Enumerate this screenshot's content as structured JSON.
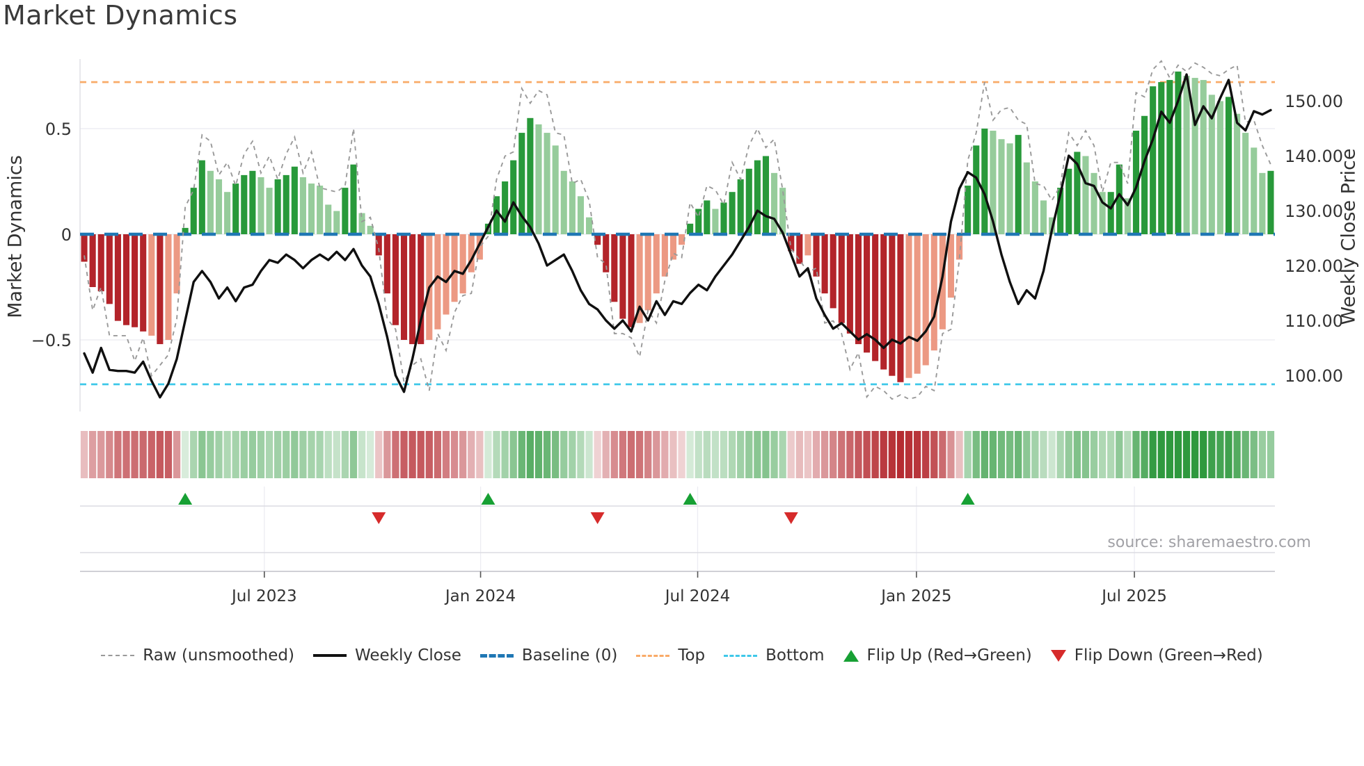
{
  "title": "Market Dynamics",
  "source_note": "source: sharemaestro.com",
  "axes": {
    "left_label": "Market Dynamics",
    "right_label": "Weekly Close Price",
    "left_ticks": [
      {
        "v": 0.5,
        "label": "0.5"
      },
      {
        "v": 0,
        "label": "0"
      },
      {
        "v": -0.5,
        "label": "−0.5"
      }
    ],
    "right_ticks": [
      {
        "v": 150,
        "label": "150.00"
      },
      {
        "v": 140,
        "label": "140.00"
      },
      {
        "v": 130,
        "label": "130.00"
      },
      {
        "v": 120,
        "label": "120.00"
      },
      {
        "v": 110,
        "label": "110.00"
      },
      {
        "v": 100,
        "label": "100.00"
      }
    ],
    "x_ticks": [
      {
        "week": 21.4,
        "label": "Jul 2023"
      },
      {
        "week": 47.1,
        "label": "Jan 2024"
      },
      {
        "week": 72.9,
        "label": "Jul 2024"
      },
      {
        "week": 98.9,
        "label": "Jan 2025"
      },
      {
        "week": 124.8,
        "label": "Jul 2025"
      }
    ]
  },
  "legend": {
    "items": [
      {
        "id": "raw",
        "swatch": "dash-gray",
        "label": "Raw (unsmoothed)"
      },
      {
        "id": "weekly-close",
        "swatch": "line-black",
        "label": "Weekly Close"
      },
      {
        "id": "baseline",
        "swatch": "dash-blue",
        "label": "Baseline (0)"
      },
      {
        "id": "top",
        "swatch": "dash-orange",
        "label": "Top"
      },
      {
        "id": "bottom",
        "swatch": "dash-cyan",
        "label": "Bottom"
      },
      {
        "id": "flip-up",
        "swatch": "tri-up",
        "label": "Flip Up (Red→Green)"
      },
      {
        "id": "flip-down",
        "swatch": "tri-down",
        "label": "Flip Down (Green→Red)"
      }
    ]
  },
  "chart_data": {
    "type": "bar",
    "subtype": "weekly impulse bars + raw dashed line + price line + heat strip + flip markers",
    "baseline": 0,
    "top_threshold": 0.72,
    "bottom_threshold": -0.71,
    "left_axis_range": [
      -0.85,
      0.83
    ],
    "right_axis_range": [
      96,
      157
    ],
    "bar_series": {
      "name": "Market Dynamics (smoothed)",
      "values": [
        -0.13,
        -0.25,
        -0.27,
        -0.33,
        -0.41,
        -0.43,
        -0.44,
        -0.46,
        -0.48,
        -0.52,
        -0.5,
        -0.28,
        0.03,
        0.22,
        0.35,
        0.3,
        0.26,
        0.2,
        0.24,
        0.28,
        0.3,
        0.27,
        0.22,
        0.26,
        0.28,
        0.32,
        0.27,
        0.24,
        0.23,
        0.14,
        0.11,
        0.22,
        0.33,
        0.1,
        0.04,
        -0.1,
        -0.28,
        -0.43,
        -0.5,
        -0.52,
        -0.52,
        -0.5,
        -0.45,
        -0.38,
        -0.32,
        -0.28,
        -0.18,
        -0.12,
        0.05,
        0.18,
        0.25,
        0.35,
        0.48,
        0.55,
        0.52,
        0.48,
        0.42,
        0.3,
        0.25,
        0.18,
        0.08,
        -0.05,
        -0.18,
        -0.32,
        -0.4,
        -0.44,
        -0.42,
        -0.36,
        -0.28,
        -0.2,
        -0.12,
        -0.05,
        0.05,
        0.12,
        0.16,
        0.12,
        0.15,
        0.2,
        0.26,
        0.31,
        0.35,
        0.37,
        0.29,
        0.22,
        -0.08,
        -0.14,
        -0.1,
        -0.2,
        -0.28,
        -0.35,
        -0.42,
        -0.47,
        -0.52,
        -0.56,
        -0.6,
        -0.64,
        -0.67,
        -0.7,
        -0.68,
        -0.66,
        -0.62,
        -0.55,
        -0.45,
        -0.3,
        -0.12,
        0.23,
        0.42,
        0.5,
        0.49,
        0.45,
        0.43,
        0.47,
        0.34,
        0.25,
        0.16,
        0.08,
        0.22,
        0.31,
        0.39,
        0.37,
        0.29,
        0.2,
        0.2,
        0.33,
        0.17,
        0.49,
        0.56,
        0.7,
        0.72,
        0.73,
        0.77,
        0.75,
        0.74,
        0.73,
        0.66,
        0.63,
        0.65,
        0.57,
        0.48,
        0.41,
        0.29,
        0.3
      ],
      "shades": "ddddddddldlldddllldddlldddlllllddllddddddlllllllddddddllllllldddddlllllldddlddddddllddldddddddddddllllllldddllldlllldddlllddlddddddllllldlllld"
    },
    "raw_series": {
      "name": "Raw (unsmoothed)",
      "values": [
        -0.1,
        -0.36,
        -0.25,
        -0.48,
        -0.48,
        -0.48,
        -0.6,
        -0.49,
        -0.67,
        -0.62,
        -0.57,
        -0.4,
        0.13,
        0.21,
        0.47,
        0.44,
        0.28,
        0.34,
        0.23,
        0.38,
        0.44,
        0.29,
        0.37,
        0.26,
        0.38,
        0.46,
        0.29,
        0.39,
        0.22,
        0.21,
        0.2,
        0.23,
        0.5,
        0.06,
        0.08,
        -0.07,
        -0.4,
        -0.45,
        -0.7,
        -0.62,
        -0.59,
        -0.74,
        -0.47,
        -0.55,
        -0.37,
        -0.29,
        -0.28,
        -0.06,
        -0.01,
        0.26,
        0.37,
        0.39,
        0.69,
        0.62,
        0.68,
        0.66,
        0.48,
        0.47,
        0.24,
        0.26,
        0.16,
        -0.11,
        -0.14,
        -0.47,
        -0.47,
        -0.49,
        -0.58,
        -0.36,
        -0.42,
        -0.22,
        -0.09,
        -0.11,
        0.15,
        0.08,
        0.23,
        0.21,
        0.14,
        0.34,
        0.26,
        0.42,
        0.5,
        0.41,
        0.45,
        0.21,
        -0.07,
        -0.12,
        -0.18,
        -0.16,
        -0.42,
        -0.41,
        -0.47,
        -0.64,
        -0.56,
        -0.77,
        -0.72,
        -0.74,
        -0.78,
        -0.76,
        -0.78,
        -0.77,
        -0.72,
        -0.74,
        -0.47,
        -0.45,
        -0.12,
        0.35,
        0.48,
        0.72,
        0.54,
        0.59,
        0.6,
        0.54,
        0.52,
        0.24,
        0.23,
        0.16,
        0.23,
        0.48,
        0.42,
        0.49,
        0.42,
        0.2,
        0.34,
        0.34,
        0.24,
        0.67,
        0.65,
        0.78,
        0.82,
        0.74,
        0.8,
        0.77,
        0.81,
        0.79,
        0.76,
        0.75,
        0.78,
        0.8,
        0.53,
        0.54,
        0.42,
        0.33
      ]
    },
    "price_series": {
      "name": "Weekly Close",
      "axis": "right",
      "values": [
        104,
        100.5,
        105,
        101,
        100.8,
        100.8,
        100.5,
        102.5,
        99,
        96,
        98.5,
        103,
        110,
        117,
        119,
        117,
        114,
        116,
        113.5,
        116,
        116.5,
        119,
        121,
        120.5,
        122,
        121,
        119.5,
        121,
        122,
        121,
        122.5,
        121,
        123,
        120,
        118,
        113,
        107,
        100,
        97,
        103,
        110,
        116,
        118,
        117,
        119,
        118.5,
        121,
        124,
        127,
        130,
        128,
        131.5,
        129,
        127,
        124,
        120,
        121,
        122,
        119,
        115.5,
        113,
        112,
        110,
        108.5,
        110,
        108,
        112.5,
        110,
        113.5,
        111,
        113.5,
        113,
        115,
        116.5,
        115.5,
        118,
        120,
        122,
        124.5,
        127,
        130,
        129,
        128.5,
        126,
        122,
        118,
        119.5,
        114,
        111,
        108.5,
        109.5,
        108,
        106.5,
        107.5,
        106.5,
        105,
        106.5,
        105.8,
        107,
        106.3,
        108,
        110.7,
        118,
        128,
        134,
        137,
        136,
        133,
        128,
        122,
        117,
        113,
        115.5,
        114,
        119,
        126.5,
        133,
        140,
        138.5,
        135,
        134.5,
        131.5,
        130.4,
        133,
        131,
        134.2,
        139,
        143,
        148,
        146,
        150,
        154.8,
        145.6,
        149,
        146.8,
        150.5,
        153.8,
        146,
        144.6,
        148.1,
        147.5,
        148.3
      ]
    },
    "flip_up_weeks": [
      12,
      48,
      72,
      105
    ],
    "flip_down_weeks": [
      35,
      61,
      84
    ],
    "colors": {
      "bar_dark_red": "#b3242a",
      "bar_light_red": "#ec9983",
      "bar_dark_green": "#28993a",
      "bar_light_green": "#96cc9b",
      "raw_line": "#999999",
      "price_line": "#101010",
      "baseline": "#1f77b4",
      "top_line": "#f9ab68",
      "bottom_line": "#3fc8e9",
      "flip_up": "#17a034",
      "flip_down": "#d62b2b",
      "grid": "#e9e9f0",
      "panel_line": "#dcdce2",
      "axis_text": "#333333",
      "muted_text": "#a1a1a6"
    },
    "legend_position": "bottom",
    "grid": "horizontal only"
  }
}
